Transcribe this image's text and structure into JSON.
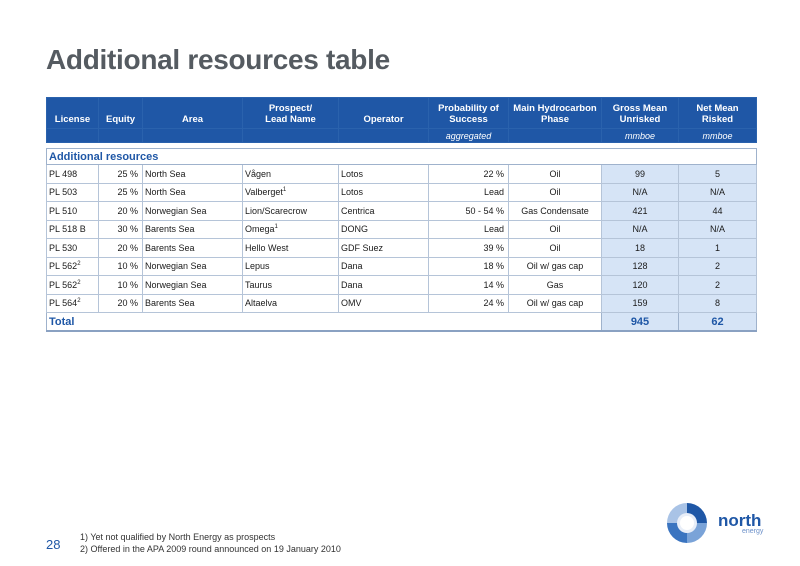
{
  "title": "Additional resources table",
  "headers": {
    "license": "License",
    "equity": "Equity",
    "area": "Area",
    "prospect": "Prospect/\nLead Name",
    "operator": "Operator",
    "probability": "Probability of Success",
    "phase": "Main Hydrocarbon Phase",
    "gross": "Gross  Mean Unrisked",
    "net": "Net Mean Risked"
  },
  "subheaders": {
    "probability": "aggregated",
    "gross": "mmboe",
    "net": "mmboe"
  },
  "section_label": "Additional resources",
  "rows": [
    {
      "license": "PL 498",
      "license_sup": "",
      "equity": "25 %",
      "area": "North Sea",
      "prospect": "Vågen",
      "prospect_sup": "",
      "operator": "Lotos",
      "probability": "22 %",
      "phase": "Oil",
      "gross": "99",
      "net": "5"
    },
    {
      "license": "PL 503",
      "license_sup": "",
      "equity": "25 %",
      "area": "North Sea",
      "prospect": "Valberget",
      "prospect_sup": "1",
      "operator": "Lotos",
      "probability": "Lead",
      "phase": "Oil",
      "gross": "N/A",
      "net": "N/A"
    },
    {
      "license": "PL 510",
      "license_sup": "",
      "equity": "20 %",
      "area": "Norwegian Sea",
      "prospect": "Lion/Scarecrow",
      "prospect_sup": "",
      "operator": "Centrica",
      "probability": "50 - 54 %",
      "phase": "Gas Condensate",
      "gross": "421",
      "net": "44"
    },
    {
      "license": "PL 518 B",
      "license_sup": "",
      "equity": "30 %",
      "area": "Barents Sea",
      "prospect": "Omega",
      "prospect_sup": "1",
      "operator": "DONG",
      "probability": "Lead",
      "phase": "Oil",
      "gross": "N/A",
      "net": "N/A"
    },
    {
      "license": "PL 530",
      "license_sup": "",
      "equity": "20 %",
      "area": "Barents  Sea",
      "prospect": "Hello West",
      "prospect_sup": "",
      "operator": "GDF Suez",
      "probability": "39 %",
      "phase": "Oil",
      "gross": "18",
      "net": "1"
    },
    {
      "license": "PL 562",
      "license_sup": "2",
      "equity": "10 %",
      "area": "Norwegian Sea",
      "prospect": "Lepus",
      "prospect_sup": "",
      "operator": "Dana",
      "probability": "18 %",
      "phase": "Oil w/ gas cap",
      "gross": "128",
      "net": "2"
    },
    {
      "license": "PL 562",
      "license_sup": "2",
      "equity": "10 %",
      "area": "Norwegian Sea",
      "prospect": "Taurus",
      "prospect_sup": "",
      "operator": "Dana",
      "probability": "14 %",
      "phase": "Gas",
      "gross": "120",
      "net": "2"
    },
    {
      "license": "PL 564",
      "license_sup": "2",
      "equity": "20 %",
      "area": "Barents Sea",
      "prospect": "Altaelva",
      "prospect_sup": "",
      "operator": "OMV",
      "probability": "24 %",
      "phase": "Oil w/ gas cap",
      "gross": "159",
      "net": "8"
    }
  ],
  "total": {
    "label": "Total",
    "gross": "945",
    "net": "62"
  },
  "page_number": "28",
  "footnotes": [
    "1) Yet not qualified by North Energy as prospects",
    "2) Offered in the APA 2009 round announced on 19 January 2010"
  ],
  "logo": {
    "name": "north",
    "sub": "energy",
    "icon": "north-energy-swirl-logo",
    "accent": "#1f57a6"
  }
}
